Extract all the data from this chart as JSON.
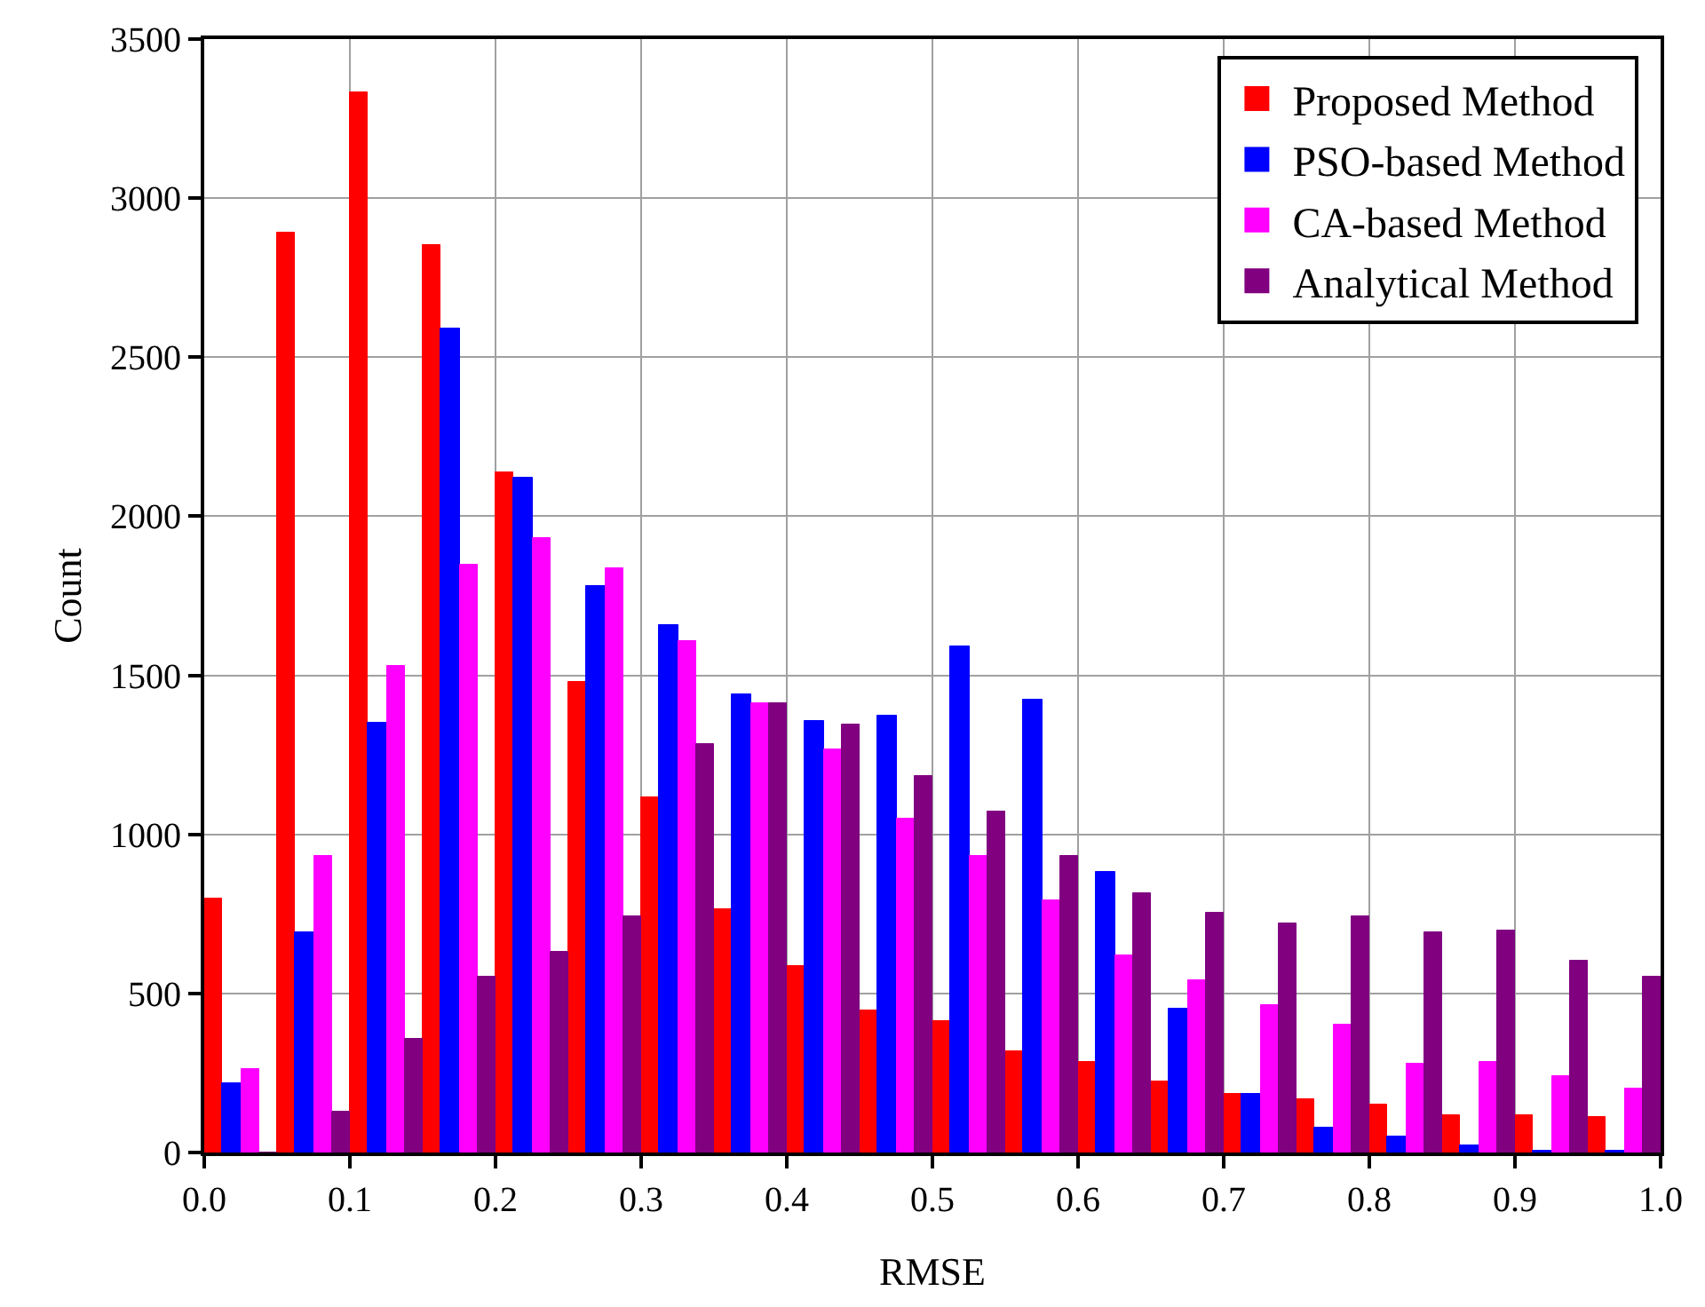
{
  "chart_data": {
    "type": "bar",
    "xlabel": "RMSE",
    "ylabel": "Count",
    "x": [
      0.025,
      0.075,
      0.125,
      0.175,
      0.225,
      0.275,
      0.325,
      0.375,
      0.425,
      0.475,
      0.525,
      0.575,
      0.625,
      0.675,
      0.725,
      0.775,
      0.825,
      0.875,
      0.925,
      0.975
    ],
    "series": [
      {
        "name": "Proposed Method",
        "color": "#ff0000",
        "values": [
          800,
          2890,
          3330,
          2850,
          2140,
          1480,
          1115,
          765,
          585,
          445,
          415,
          320,
          285,
          225,
          185,
          165,
          150,
          120,
          120,
          110
        ]
      },
      {
        "name": "PSO-based Method",
        "color": "#0000ff",
        "values": [
          215,
          690,
          1350,
          2590,
          2120,
          1780,
          1660,
          1440,
          1355,
          1375,
          1590,
          1425,
          880,
          450,
          185,
          80,
          50,
          20,
          5,
          5
        ]
      },
      {
        "name": "CA-based Method",
        "color": "#ff00ff",
        "values": [
          260,
          935,
          1530,
          1845,
          1930,
          1835,
          1610,
          1410,
          1265,
          1050,
          930,
          795,
          620,
          540,
          465,
          400,
          280,
          285,
          240,
          200
        ]
      },
      {
        "name": "Analytical Method",
        "color": "#800080",
        "values": [
          0,
          130,
          360,
          550,
          630,
          740,
          1285,
          1415,
          1345,
          1185,
          1070,
          935,
          815,
          755,
          720,
          740,
          695,
          700,
          605,
          555
        ]
      }
    ],
    "xlim": [
      0,
      1
    ],
    "xticks": [
      {
        "value": 0,
        "label": "0.0"
      },
      {
        "value": 0.1,
        "label": "0.1"
      },
      {
        "value": 0.2,
        "label": "0.2"
      },
      {
        "value": 0.3,
        "label": "0.3"
      },
      {
        "value": 0.4,
        "label": "0.4"
      },
      {
        "value": 0.5,
        "label": "0.5"
      },
      {
        "value": 0.6,
        "label": "0.6"
      },
      {
        "value": 0.7,
        "label": "0.7"
      },
      {
        "value": 0.8,
        "label": "0.8"
      },
      {
        "value": 0.9,
        "label": "0.9"
      },
      {
        "value": 1,
        "label": "1.0"
      }
    ],
    "ylim": [
      0,
      3500
    ],
    "yticks": [
      0,
      500,
      1000,
      1500,
      2000,
      2500,
      3000,
      3500
    ],
    "grid": true,
    "legend": "top right"
  }
}
